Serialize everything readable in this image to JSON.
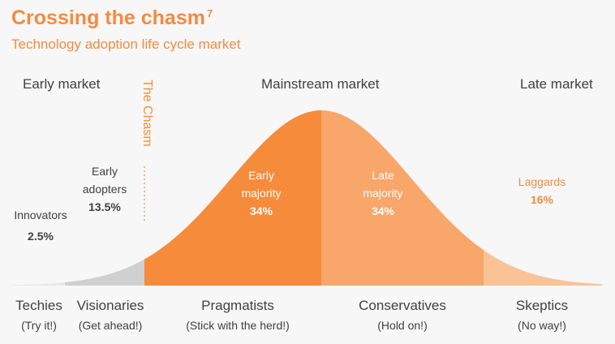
{
  "header": {
    "title": "Crossing the chasm",
    "title_superscript": "7",
    "subtitle": "Technology adoption life cycle market"
  },
  "markets": {
    "early": "Early market",
    "mainstream": "Mainstream market",
    "late": "Late market"
  },
  "chasm_label": "The Chasm",
  "segments": [
    {
      "label_line1": "Innovators",
      "label_line2": "",
      "pct": "2.5%",
      "group": "Techies",
      "motto": "(Try it!)",
      "color": "#e8e8e8"
    },
    {
      "label_line1": "Early",
      "label_line2": "adopters",
      "pct": "13.5%",
      "group": "Visionaries",
      "motto": "(Get ahead!)",
      "color": "#d0d0d0"
    },
    {
      "label_line1": "Early",
      "label_line2": "majority",
      "pct": "34%",
      "group": "Pragmatists",
      "motto": "(Stick with the herd!)",
      "color": "#f68b3c"
    },
    {
      "label_line1": "Late",
      "label_line2": "majority",
      "pct": "34%",
      "group": "Conservatives",
      "motto": "(Hold on!)",
      "color": "#f8a66a"
    },
    {
      "label_line1": "Laggards",
      "label_line2": "",
      "pct": "16%",
      "group": "Skeptics",
      "motto": "(No way!)",
      "color": "#fbc295"
    }
  ],
  "colors": {
    "accent": "#f68b3c",
    "text": "#404040",
    "background": "#f7f7f7"
  }
}
